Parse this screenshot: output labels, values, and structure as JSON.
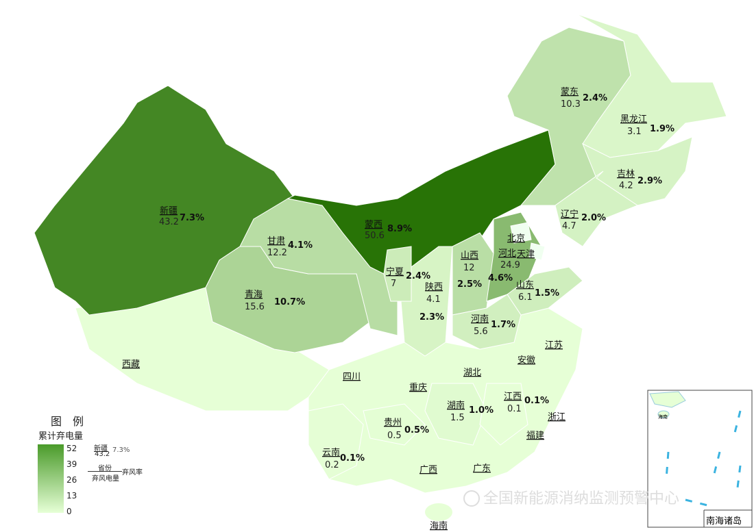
{
  "legend": {
    "title": "图　例",
    "subtitle": "累计弃电量",
    "ticks": [
      "52",
      "39",
      "26",
      "13",
      "0"
    ],
    "range": [
      0,
      52
    ],
    "color_low": "#e6ffd6",
    "color_high": "#236f00",
    "example": {
      "name": "新疆",
      "value": "43.2",
      "rate": "7.3%"
    },
    "key": {
      "top": "省份",
      "bottom": "弃风电量",
      "right": "弃风率"
    }
  },
  "provinces": [
    {
      "id": "xinjiang",
      "name": "新疆",
      "value": "43.2",
      "rate": "7.3%"
    },
    {
      "id": "mengxi",
      "name": "蒙西",
      "value": "50.6",
      "rate": "8.9%"
    },
    {
      "id": "mengdong",
      "name": "蒙东",
      "value": "10.3",
      "rate": "2.4%"
    },
    {
      "id": "heilongjiang",
      "name": "黑龙江",
      "value": "3.1",
      "rate": "1.9%"
    },
    {
      "id": "jilin",
      "name": "吉林",
      "value": "4.2",
      "rate": "2.9%"
    },
    {
      "id": "liaoning",
      "name": "辽宁",
      "value": "4.7",
      "rate": "2.0%"
    },
    {
      "id": "gansu",
      "name": "甘肃",
      "value": "12.2",
      "rate": "4.1%"
    },
    {
      "id": "qinghai",
      "name": "青海",
      "value": "15.6",
      "rate": "10.7%"
    },
    {
      "id": "ningxia",
      "name": "宁夏",
      "value": "7",
      "rate": "2.4%"
    },
    {
      "id": "shaanxi",
      "name": "陕西",
      "value": "4.1",
      "rate": "2.3%"
    },
    {
      "id": "shanxi",
      "name": "山西",
      "value": "12",
      "rate": "2.5%"
    },
    {
      "id": "hebei",
      "name": "河北",
      "value": "24.9",
      "rate": "4.6%"
    },
    {
      "id": "shandong",
      "name": "山东",
      "value": "6.1",
      "rate": "1.5%"
    },
    {
      "id": "henan",
      "name": "河南",
      "value": "5.6",
      "rate": "1.7%"
    },
    {
      "id": "hunan",
      "name": "湖南",
      "value": "1.5",
      "rate": "1.0%"
    },
    {
      "id": "jiangxi",
      "name": "江西",
      "value": "0.1",
      "rate": "0.1%"
    },
    {
      "id": "guizhou",
      "name": "贵州",
      "value": "0.5",
      "rate": "0.5%"
    },
    {
      "id": "yunnan",
      "name": "云南",
      "value": "0.2",
      "rate": "0.1%"
    }
  ],
  "unlabeled_provinces": [
    "北京",
    "天津",
    "西藏",
    "四川",
    "重庆",
    "湖北",
    "江苏",
    "安徽",
    "浙江",
    "福建",
    "广西",
    "广东",
    "海南"
  ],
  "inset": {
    "title": "南海诸岛",
    "label": "海南"
  },
  "watermark": "全国新能源消纳监测预警中心"
}
